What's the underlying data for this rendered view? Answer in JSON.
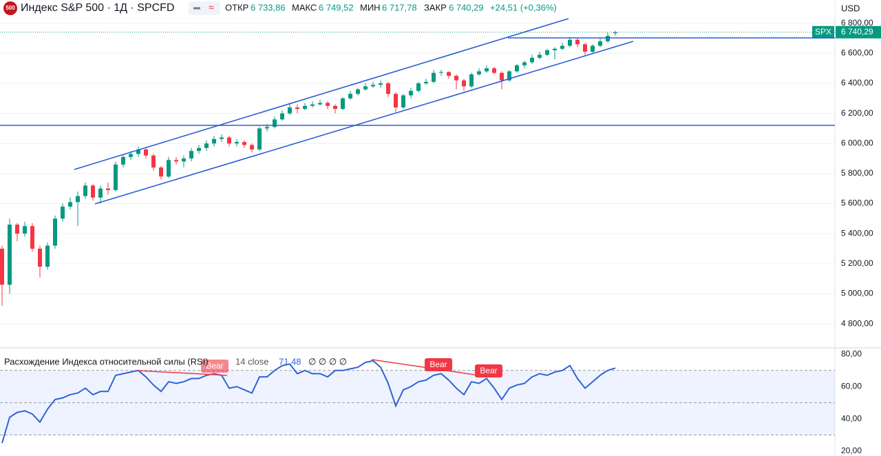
{
  "header": {
    "logo": "500",
    "title": "Индекс S&P 500 · 1Д · SPCFD",
    "open_label": "ОТКР",
    "open": "6 733,86",
    "high_label": "МАКС",
    "high": "6 749,52",
    "low_label": "МИН",
    "low": "6 717,78",
    "close_label": "ЗАКР",
    "close": "6 740,29",
    "change": "+24,51 (+0,36%)",
    "currency": "USD"
  },
  "chart_data": [
    {
      "type": "candlestick",
      "symbol": "SPX",
      "last_label": "6 740,29",
      "last": 6740.29,
      "up_color": "#089981",
      "down_color": "#f23645",
      "open": [
        5300,
        5060,
        5460,
        5400,
        5450,
        5300,
        5180,
        5320,
        5500,
        5580,
        5610,
        5650,
        5720,
        5640,
        5700,
        5690,
        5860,
        5910,
        5930,
        5960,
        5920,
        5840,
        5780,
        5890,
        5880,
        5900,
        5950,
        5970,
        6000,
        6030,
        6040,
        6000,
        6010,
        5990,
        5960,
        6100,
        6110,
        6160,
        6200,
        6240,
        6230,
        6250,
        6260,
        6270,
        6250,
        6230,
        6300,
        6330,
        6360,
        6380,
        6390,
        6400,
        6330,
        6240,
        6320,
        6350,
        6400,
        6410,
        6470,
        6475,
        6450,
        6420,
        6380,
        6460,
        6480,
        6500,
        6470,
        6420,
        6480,
        6520,
        6540,
        6570,
        6590,
        6620,
        6630,
        6650,
        6690,
        6660,
        6610,
        6650,
        6680,
        6733.86
      ],
      "high": [
        5320,
        5500,
        5470,
        5480,
        5470,
        5320,
        5340,
        5520,
        5600,
        5640,
        5680,
        5740,
        5730,
        5720,
        5740,
        5880,
        5930,
        5950,
        5980,
        5970,
        5930,
        5850,
        5910,
        5910,
        5920,
        5970,
        5990,
        6020,
        6050,
        6060,
        6050,
        6030,
        6020,
        6000,
        6110,
        6130,
        6180,
        6220,
        6270,
        6260,
        6270,
        6280,
        6290,
        6280,
        6260,
        6310,
        6350,
        6370,
        6400,
        6410,
        6420,
        6410,
        6340,
        6330,
        6370,
        6410,
        6430,
        6490,
        6490,
        6480,
        6460,
        6430,
        6470,
        6500,
        6520,
        6510,
        6480,
        6490,
        6530,
        6550,
        6590,
        6610,
        6630,
        6640,
        6670,
        6710,
        6700,
        6670,
        6660,
        6700,
        6740,
        6749.52
      ],
      "low": [
        4920,
        5000,
        5350,
        5380,
        5280,
        5110,
        5160,
        5300,
        5480,
        5560,
        5450,
        5630,
        5620,
        5600,
        5660,
        5680,
        5840,
        5890,
        5910,
        5900,
        5820,
        5760,
        5770,
        5860,
        5840,
        5880,
        5930,
        5950,
        5980,
        6010,
        5980,
        5980,
        5970,
        5940,
        5950,
        6080,
        6100,
        6150,
        6190,
        6200,
        6220,
        6240,
        6250,
        6230,
        6200,
        6220,
        6290,
        6320,
        6350,
        6370,
        6370,
        6310,
        6210,
        6230,
        6300,
        6340,
        6390,
        6400,
        6450,
        6430,
        6360,
        6350,
        6370,
        6450,
        6470,
        6460,
        6360,
        6410,
        6470,
        6500,
        6530,
        6560,
        6580,
        6560,
        6620,
        6640,
        6640,
        6580,
        6600,
        6640,
        6670,
        6717.78
      ],
      "close": [
        5060,
        5460,
        5400,
        5450,
        5300,
        5180,
        5320,
        5500,
        5580,
        5610,
        5650,
        5720,
        5640,
        5700,
        5690,
        5860,
        5910,
        5930,
        5960,
        5920,
        5840,
        5780,
        5890,
        5880,
        5900,
        5950,
        5970,
        6000,
        6030,
        6040,
        6000,
        6010,
        5990,
        5960,
        6100,
        6110,
        6160,
        6200,
        6240,
        6230,
        6250,
        6260,
        6270,
        6250,
        6230,
        6300,
        6330,
        6360,
        6380,
        6390,
        6400,
        6330,
        6240,
        6320,
        6350,
        6400,
        6410,
        6470,
        6475,
        6450,
        6420,
        6380,
        6460,
        6480,
        6500,
        6470,
        6420,
        6480,
        6520,
        6540,
        6570,
        6590,
        6620,
        6630,
        6650,
        6690,
        6660,
        6610,
        6650,
        6680,
        6715.78,
        6740.29
      ],
      "ylim": [
        4640,
        6840
      ],
      "yticks": [
        {
          "value": 6800,
          "label": "6 800,00"
        },
        {
          "value": 6600,
          "label": "6 600,00"
        },
        {
          "value": 6400,
          "label": "6 400,00"
        },
        {
          "value": 6200,
          "label": "6 200,00"
        },
        {
          "value": 6000,
          "label": "6 000,00"
        },
        {
          "value": 5800,
          "label": "5 800,00"
        },
        {
          "value": 5600,
          "label": "5 600,00"
        },
        {
          "value": 5400,
          "label": "5 400,00"
        },
        {
          "value": 5200,
          "label": "5 200,00"
        },
        {
          "value": 5000,
          "label": "5 000,00"
        },
        {
          "value": 4800,
          "label": "4 800,00"
        }
      ],
      "grid": true
    },
    {
      "type": "line",
      "title": "Расхождение Индекса относительной силы (RSI)",
      "params": "14 close",
      "value_label": "71,48",
      "extra": "∅ ∅ ∅ ∅",
      "color": "#2f62d6",
      "values": [
        25,
        41,
        44,
        45,
        43,
        38,
        46,
        52,
        53,
        55,
        56,
        59,
        55,
        57,
        57,
        67,
        68,
        69,
        70,
        66,
        61,
        57,
        63,
        62,
        63,
        65,
        65,
        67,
        68,
        67,
        59,
        60,
        58,
        56,
        66,
        66,
        70,
        73,
        74,
        68,
        70,
        68,
        68,
        66,
        70,
        70,
        71,
        72,
        75,
        76,
        72,
        62,
        48,
        58,
        60,
        63,
        64,
        67,
        68,
        64,
        59,
        55,
        63,
        62,
        65,
        59,
        52,
        59,
        61,
        62,
        66,
        68,
        67,
        69,
        70,
        73,
        65,
        59,
        63,
        67,
        70,
        71.48
      ],
      "ylim": [
        17,
        84
      ],
      "yticks": [
        {
          "value": 80,
          "label": "80,00"
        },
        {
          "value": 60,
          "label": "60,00"
        },
        {
          "value": 40,
          "label": "40,00"
        },
        {
          "value": 20,
          "label": "20,00"
        }
      ],
      "band": [
        30,
        70
      ],
      "levels": [
        70,
        50,
        30
      ],
      "annotations": [
        "Bear",
        "Bear",
        "Bear"
      ]
    }
  ]
}
